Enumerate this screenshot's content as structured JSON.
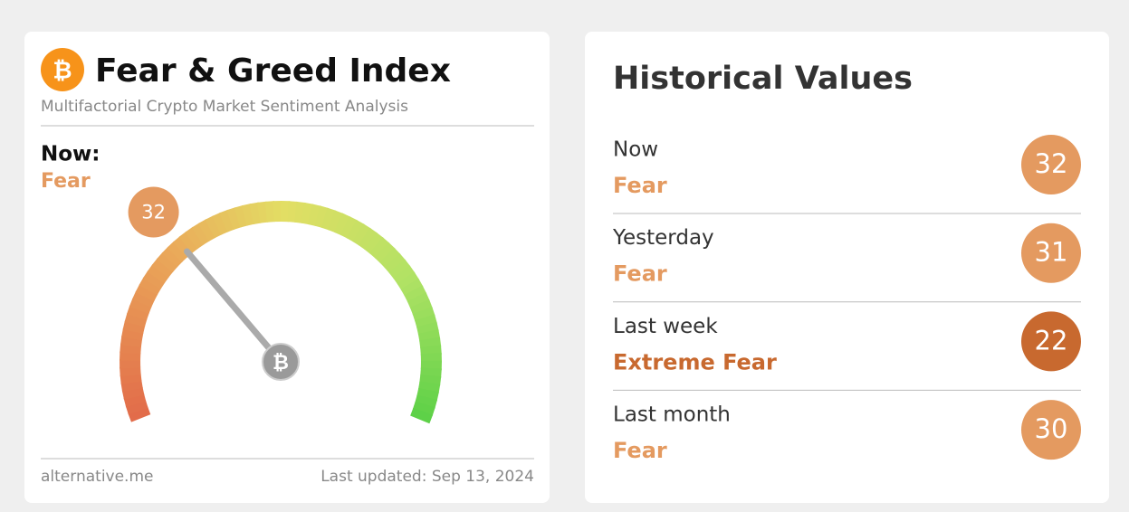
{
  "index_card": {
    "title": "Fear & Greed Index",
    "subtitle": "Multifactorial Crypto Market Sentiment Analysis",
    "now_label": "Now:",
    "now_class": "Fear",
    "now_value": 32,
    "color": "#e49a60",
    "gauge_range": [
      0,
      100
    ],
    "source": "alternative.me",
    "updated": "Last updated: Sep 13, 2024"
  },
  "historical": {
    "title": "Historical Values",
    "rows": [
      {
        "period": "Now",
        "class": "Fear",
        "value": 32,
        "color": "#e49a60"
      },
      {
        "period": "Yesterday",
        "class": "Fear",
        "value": 31,
        "color": "#e49a60"
      },
      {
        "period": "Last week",
        "class": "Extreme Fear",
        "value": 22,
        "color": "#c8692f"
      },
      {
        "period": "Last month",
        "class": "Fear",
        "value": 30,
        "color": "#e49a60"
      }
    ]
  }
}
